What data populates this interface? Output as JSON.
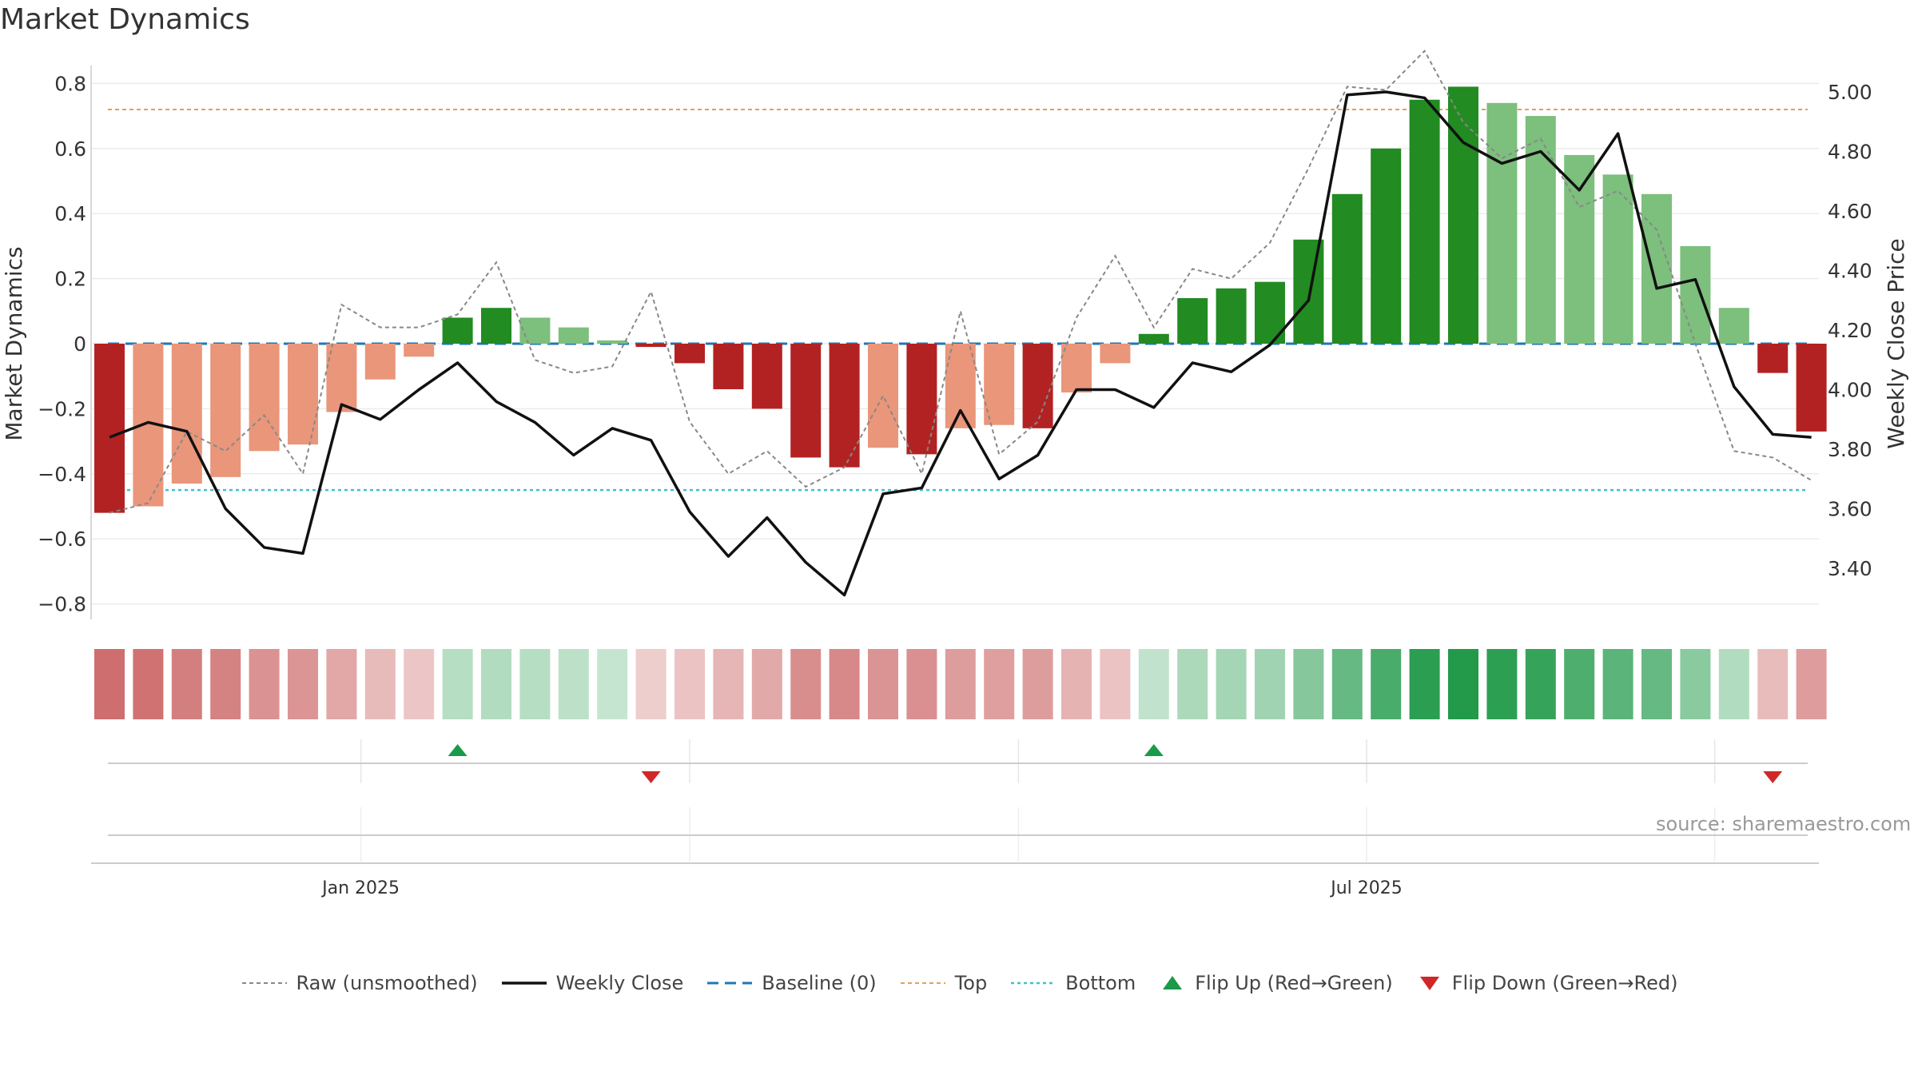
{
  "title": "Market Dynamics",
  "source": "source: sharemaestro.com",
  "colors": {
    "strong_red": "#b22222",
    "light_red": "#e9967a",
    "strong_green": "#228b22",
    "light_green": "#7dbf7d",
    "close_line": "#111111",
    "raw_line": "#888888",
    "baseline": "#1f77b4",
    "top": "#e0a060",
    "bottom": "#40c0d0",
    "flip_up": "#1a9a4a",
    "flip_down": "#d02828"
  },
  "legend": [
    {
      "key": "raw",
      "label": "Raw (unsmoothed)"
    },
    {
      "key": "close",
      "label": "Weekly Close"
    },
    {
      "key": "baseline",
      "label": "Baseline (0)"
    },
    {
      "key": "top",
      "label": "Top"
    },
    {
      "key": "bottom",
      "label": "Bottom"
    },
    {
      "key": "flip_up",
      "label": "Flip Up (Red→Green)"
    },
    {
      "key": "flip_down",
      "label": "Flip Down (Green→Red)"
    }
  ],
  "chart_data": {
    "type": "bar",
    "title": "Market Dynamics",
    "ylabel": "Market Dynamics",
    "y2label": "Weekly Close Price",
    "ylim": [
      -0.85,
      0.85
    ],
    "y2lim": [
      3.22,
      5.11
    ],
    "yticks": [
      -0.8,
      -0.6,
      -0.4,
      -0.2,
      0,
      0.2,
      0.4,
      0.6,
      0.8
    ],
    "ytick_labels": [
      "−0.8",
      "−0.6",
      "−0.4",
      "−0.2",
      "0",
      "0.2",
      "0.4",
      "0.6",
      "0.8"
    ],
    "y2ticks": [
      3.4,
      3.6,
      3.8,
      4.0,
      4.2,
      4.4,
      4.6,
      4.8,
      5.0
    ],
    "y2tick_labels": [
      "3.40",
      "3.60",
      "3.80",
      "4.00",
      "4.20",
      "4.40",
      "4.60",
      "4.80",
      "5.00"
    ],
    "xtick_labels": [
      {
        "week": 6.5,
        "label": "Jan 2025"
      },
      {
        "week": 32.5,
        "label": "Jul 2025"
      }
    ],
    "vgrid_weeks": [
      6.5,
      15,
      23.5,
      32.5,
      41.5
    ],
    "top_line": 0.72,
    "bottom_line": -0.45,
    "baseline": 0,
    "values": [
      -0.52,
      -0.5,
      -0.43,
      -0.41,
      -0.33,
      -0.31,
      -0.21,
      -0.11,
      -0.04,
      0.08,
      0.11,
      0.08,
      0.05,
      0.01,
      -0.01,
      -0.06,
      -0.14,
      -0.2,
      -0.35,
      -0.38,
      -0.32,
      -0.34,
      -0.26,
      -0.25,
      -0.26,
      -0.15,
      -0.06,
      0.03,
      0.14,
      0.17,
      0.19,
      0.32,
      0.46,
      0.6,
      0.75,
      0.79,
      0.74,
      0.7,
      0.58,
      0.52,
      0.46,
      0.3,
      0.11,
      -0.09,
      -0.27
    ],
    "bar_tone": [
      "strong",
      "light",
      "light",
      "light",
      "light",
      "light",
      "light",
      "light",
      "light",
      "strong",
      "strong",
      "light",
      "light",
      "light",
      "strong",
      "strong",
      "strong",
      "strong",
      "strong",
      "strong",
      "light",
      "strong",
      "light",
      "light",
      "strong",
      "light",
      "light",
      "strong",
      "strong",
      "strong",
      "strong",
      "strong",
      "strong",
      "strong",
      "strong",
      "strong",
      "light",
      "light",
      "light",
      "light",
      "light",
      "light",
      "light",
      "strong",
      "strong"
    ],
    "raw": [
      -0.52,
      -0.49,
      -0.27,
      -0.33,
      -0.22,
      -0.4,
      0.12,
      0.05,
      0.05,
      0.09,
      0.25,
      -0.05,
      -0.09,
      -0.07,
      0.16,
      -0.24,
      -0.4,
      -0.33,
      -0.44,
      -0.38,
      -0.16,
      -0.4,
      0.1,
      -0.34,
      -0.24,
      0.08,
      0.27,
      0.05,
      0.23,
      0.2,
      0.31,
      0.54,
      0.79,
      0.78,
      0.9,
      0.68,
      0.57,
      0.63,
      0.42,
      0.47,
      0.35,
      0.0,
      -0.33,
      -0.35,
      -0.42
    ],
    "close": [
      3.84,
      3.89,
      3.86,
      3.6,
      3.47,
      3.45,
      3.95,
      3.9,
      4.0,
      4.09,
      3.96,
      3.89,
      3.78,
      3.87,
      3.83,
      3.59,
      3.44,
      3.57,
      3.42,
      3.31,
      3.65,
      3.67,
      3.93,
      3.7,
      3.78,
      4.0,
      4.0,
      3.94,
      4.09,
      4.06,
      4.15,
      4.3,
      4.99,
      5.0,
      4.98,
      4.83,
      4.76,
      4.8,
      4.67,
      4.86,
      4.34,
      4.37,
      4.01,
      3.85,
      3.84
    ],
    "heat": [
      -0.52,
      -0.5,
      -0.43,
      -0.41,
      -0.33,
      -0.31,
      -0.21,
      -0.11,
      -0.04,
      0.08,
      0.11,
      0.08,
      0.05,
      0.01,
      -0.01,
      -0.06,
      -0.14,
      -0.2,
      -0.35,
      -0.38,
      -0.32,
      -0.34,
      -0.26,
      -0.25,
      -0.26,
      -0.15,
      -0.06,
      0.03,
      0.14,
      0.17,
      0.19,
      0.32,
      0.46,
      0.6,
      0.75,
      0.79,
      0.74,
      0.7,
      0.58,
      0.52,
      0.46,
      0.3,
      0.11,
      -0.09,
      -0.27
    ],
    "flip_up_weeks": [
      9,
      27
    ],
    "flip_down_weeks": [
      14,
      43
    ]
  }
}
